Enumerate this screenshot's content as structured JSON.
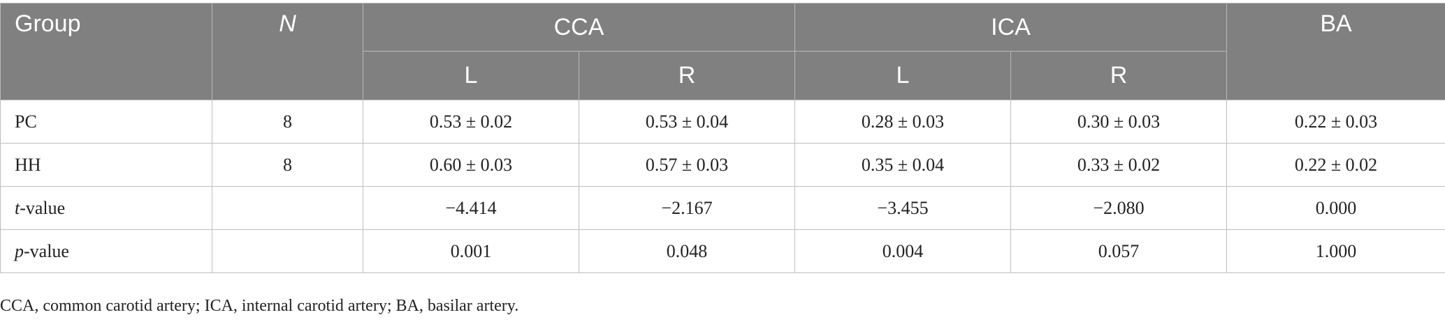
{
  "table": {
    "headers": {
      "group": "Group",
      "n": "N",
      "cca": "CCA",
      "ica": "ICA",
      "ba": "BA",
      "cca_left": "L",
      "cca_right": "R",
      "ica_left": "L",
      "ica_right": "R"
    },
    "rows": [
      {
        "label": "PC",
        "n": "8",
        "cca_l": "0.53 ± 0.02",
        "cca_r": "0.53 ± 0.04",
        "ica_l": "0.28 ± 0.03",
        "ica_r": "0.30 ± 0.03",
        "ba": "0.22 ± 0.03"
      },
      {
        "label": "HH",
        "n": "8",
        "cca_l": "0.60 ± 0.03",
        "cca_r": "0.57 ± 0.03",
        "ica_l": "0.35 ± 0.04",
        "ica_r": "0.33 ± 0.02",
        "ba": "0.22 ± 0.02"
      },
      {
        "label_italic": "t",
        "label_rest": "-value",
        "n": "",
        "cca_l": "−4.414",
        "cca_r": "−2.167",
        "ica_l": "−3.455",
        "ica_r": "−2.080",
        "ba": "0.000"
      },
      {
        "label_italic": "p",
        "label_rest": "-value",
        "n": "",
        "cca_l": "0.001",
        "cca_r": "0.048",
        "ica_l": "0.004",
        "ica_r": "0.057",
        "ba": "1.000"
      }
    ]
  },
  "caption": "CCA, common carotid artery; ICA, internal carotid artery; BA, basilar artery."
}
